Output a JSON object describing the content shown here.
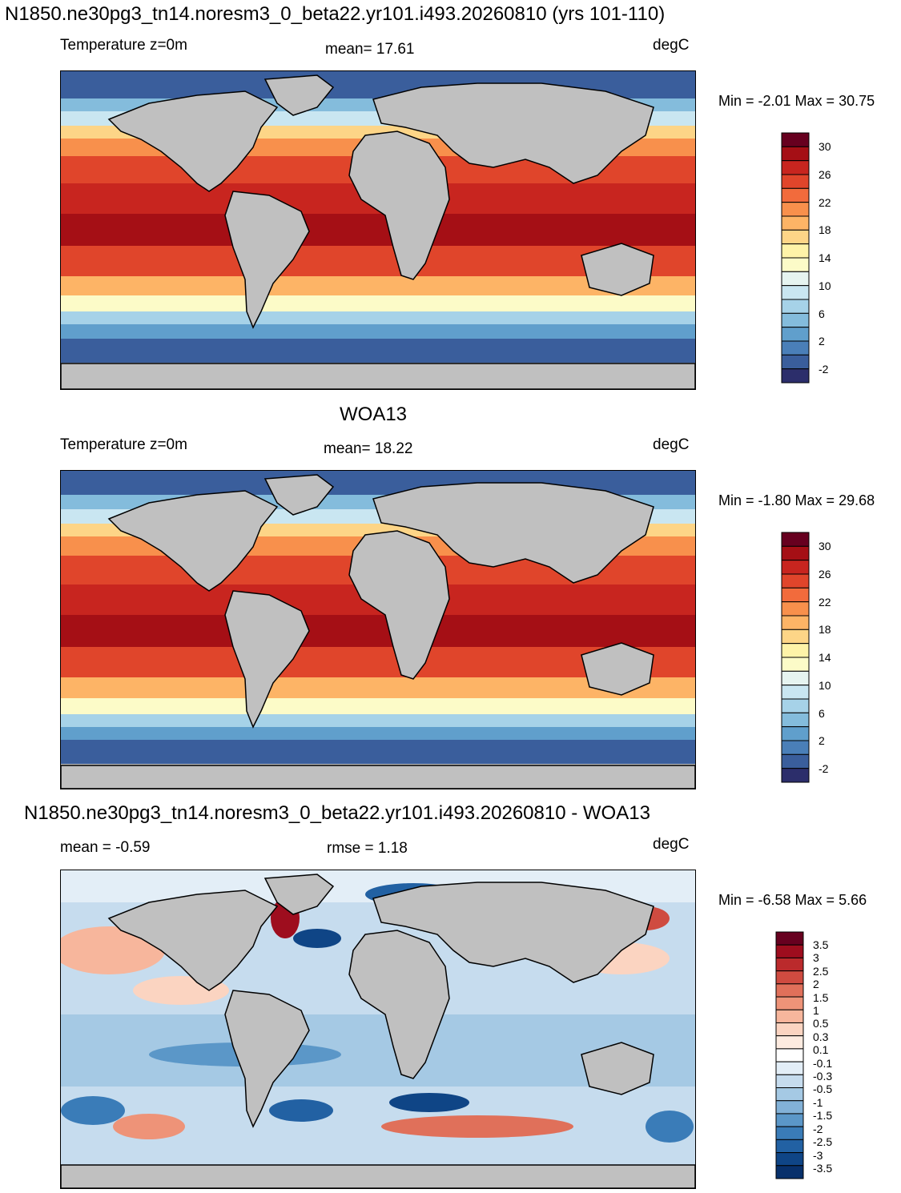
{
  "chart_data": [
    {
      "type": "heatmap",
      "figure_title": "N1850.ne30pg3_tn14.noresm3_0_beta22.yr101.i493.20260810 (yrs 101-110)",
      "left_label": "Temperature z=0m",
      "center_label": "mean=  17.61",
      "units": "degC",
      "min_max": "Min =  -2.01 Max =  30.75",
      "colorbar_ticks": [
        "30",
        "26",
        "22",
        "18",
        "14",
        "10",
        "6",
        "2",
        "-2"
      ],
      "colorbar_colors": [
        "#67001f",
        "#a50f15",
        "#c8251f",
        "#e0452b",
        "#f26b3c",
        "#f8904c",
        "#fdb466",
        "#fdd587",
        "#fef3a8",
        "#fcfbc8",
        "#e6f4f0",
        "#c9e6f1",
        "#a6d2e8",
        "#84bcdc",
        "#609fcc",
        "#4a7fb8",
        "#3a5e9c",
        "#2c2e6b"
      ],
      "mean": 17.61
    },
    {
      "type": "heatmap",
      "figure_title": "WOA13",
      "left_label": "Temperature z=0m",
      "center_label": "mean=  18.22",
      "units": "degC",
      "min_max": "Min =  -1.80 Max =  29.68",
      "colorbar_ticks": [
        "30",
        "26",
        "22",
        "18",
        "14",
        "10",
        "6",
        "2",
        "-2"
      ],
      "colorbar_colors": [
        "#67001f",
        "#a50f15",
        "#c8251f",
        "#e0452b",
        "#f26b3c",
        "#f8904c",
        "#fdb466",
        "#fdd587",
        "#fef3a8",
        "#fcfbc8",
        "#e6f4f0",
        "#c9e6f1",
        "#a6d2e8",
        "#84bcdc",
        "#609fcc",
        "#4a7fb8",
        "#3a5e9c",
        "#2c2e6b"
      ],
      "mean": 18.22
    },
    {
      "type": "heatmap",
      "figure_title": "N1850.ne30pg3_tn14.noresm3_0_beta22.yr101.i493.20260810 - WOA13",
      "left_label": "mean =  -0.59",
      "center_label": "rmse =    1.18",
      "units": "degC",
      "min_max": "Min =  -6.58 Max =    5.66",
      "colorbar_ticks": [
        "3.5",
        "3",
        "2.5",
        "2",
        "1.5",
        "1",
        "0.5",
        "0.3",
        "0.1",
        "-0.1",
        "-0.3",
        "-0.5",
        "-1",
        "-1.5",
        "-2",
        "-2.5",
        "-3",
        "-3.5"
      ],
      "colorbar_colors": [
        "#67001f",
        "#9e0d1e",
        "#bb2a2c",
        "#cf4b40",
        "#e0705a",
        "#ee9378",
        "#f7b69c",
        "#fbd4c1",
        "#fdebe0",
        "#ffffff",
        "#e3eef7",
        "#c6dcee",
        "#a5c9e4",
        "#82b1d7",
        "#5b97c8",
        "#3a7cb8",
        "#2261a3",
        "#0f4586",
        "#08306b"
      ],
      "mean": -0.59,
      "rmse": 1.18
    }
  ]
}
